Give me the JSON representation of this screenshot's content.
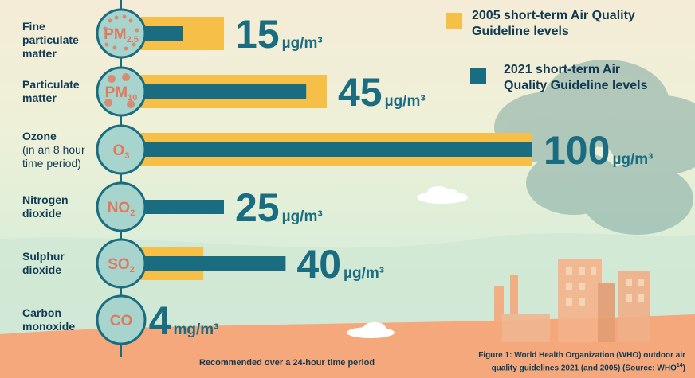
{
  "colors": {
    "bar_2005": "#f6bf47",
    "bar_2021": "#1a6c80",
    "circle_fill": "#a7d4cc",
    "circle_stroke": "#1a6c80",
    "symbol": "#e07a5f",
    "text": "#123b53"
  },
  "legend": {
    "item_2005": "2005 short-term Air Quality Guideline levels",
    "item_2021": "2021 short-term Air Quality Guideline levels"
  },
  "footer": "Recommended over a 24-hour time period",
  "caption": {
    "text": "Figure 1: World Health Organization (WHO) outdoor air quality guidelines 2021 (and 2005) (Source: WHO",
    "ref": "14",
    "close": ")"
  },
  "chart_data": {
    "type": "bar",
    "orientation": "horizontal",
    "xlim": [
      0,
      100
    ],
    "categories": [
      {
        "label": "Fine particulate matter",
        "label_sub": "",
        "symbol": "PM",
        "symbol_sub": "2.5",
        "display_value": "15",
        "unit": "µg/m³"
      },
      {
        "label": "Particulate matter",
        "label_sub": "",
        "symbol": "PM",
        "symbol_sub": "10",
        "display_value": "45",
        "unit": "µg/m³"
      },
      {
        "label": "Ozone",
        "label_sub": "(in an 8 hour time period)",
        "symbol": "O",
        "symbol_sub": "3",
        "display_value": "100",
        "unit": "µg/m³"
      },
      {
        "label": "Nitrogen dioxide",
        "label_sub": "",
        "symbol": "NO",
        "symbol_sub": "2",
        "display_value": "25",
        "unit": "µg/m³"
      },
      {
        "label": "Sulphur dioxide",
        "label_sub": "",
        "symbol": "SO",
        "symbol_sub": "2",
        "display_value": "40",
        "unit": "µg/m³"
      },
      {
        "label": "Carbon monoxide",
        "label_sub": "",
        "symbol": "CO",
        "symbol_sub": "",
        "display_value": "4",
        "unit": "mg/m³"
      }
    ],
    "series": [
      {
        "name": "2005 short-term Air Quality Guideline levels",
        "values": [
          25,
          50,
          100,
          null,
          20,
          null
        ]
      },
      {
        "name": "2021 short-term Air Quality Guideline levels",
        "values": [
          15,
          45,
          100,
          25,
          40,
          4
        ]
      }
    ]
  }
}
